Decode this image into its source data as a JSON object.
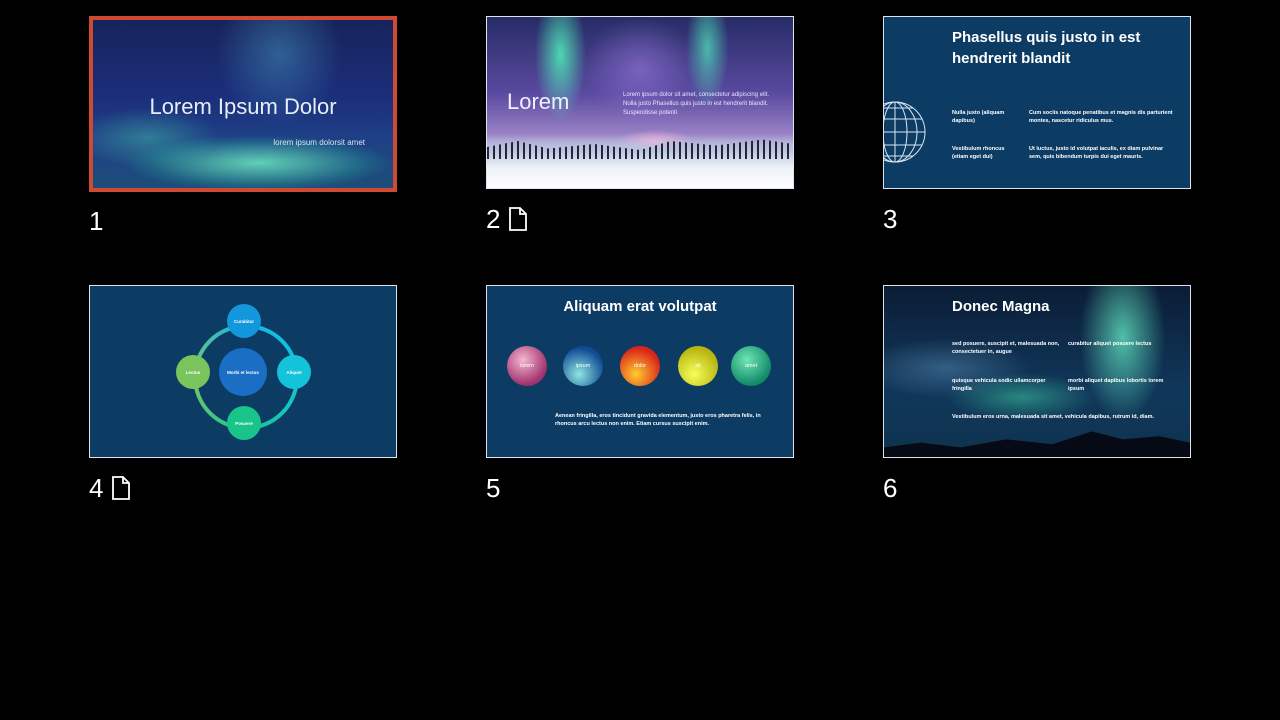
{
  "slides": [
    {
      "number": "1",
      "selected": true,
      "title": "Lorem Ipsum Dolor",
      "subtitle": "lorem ipsum dolorsit amet"
    },
    {
      "number": "2",
      "has_notes": true,
      "title": "Lorem",
      "body": "Lorem ipsum dolor sit amet, consectetur adipiscing elit. Nulla justo Phasellus quis justo in est hendrerit blandit. Suspendisse potenti"
    },
    {
      "number": "3",
      "title": "Phasellus quis justo in est hendrerit blandit",
      "cells": [
        "Nulla justo (aliquam dapibus)",
        "Cum sociis natoque penatibus et magnis dis parturient montes, nascetur ridiculus mus.",
        "Vestibulum rhoncus (etiam eget dui)",
        "Ut luctus, justo id volutpat iaculis, ex diam pulvinar sem, quis bibendum turpis dui eget mauris."
      ]
    },
    {
      "number": "4",
      "has_notes": true,
      "center_label": "Morbi et lectus",
      "nodes": [
        "Curabitur",
        "Aliquet",
        "Posuere",
        "Lectus"
      ]
    },
    {
      "number": "5",
      "title": "Aliquam erat volutpat",
      "balls": [
        "lorem",
        "ipsum",
        "dolor",
        "sit",
        "amet"
      ],
      "body": "Aenean fringilla, eros tincidunt gravida elementum, justo eros pharetra felis, in rhoncus arcu lectus non enim. Etiam cursus suscipit enim."
    },
    {
      "number": "6",
      "title": "Donec Magna",
      "cells": [
        "sed posuere, suscipit et, malesuada non, consectetuer in, augue",
        "curabitur aliquet posuere lectus",
        "quisque vehicula sodic ullamcorper fringilla",
        "morbi aliquet dapibus lobortis lorem ipsum",
        "Vestibulum eros urna, malesuada sit amet, vehicula dapibus, rutrum id, diam."
      ]
    }
  ],
  "colors": {
    "background": "#000000",
    "selection_border": "#cf4a33",
    "slide_navy": "#0c3b64"
  },
  "icons": {
    "notes": "document-icon"
  }
}
